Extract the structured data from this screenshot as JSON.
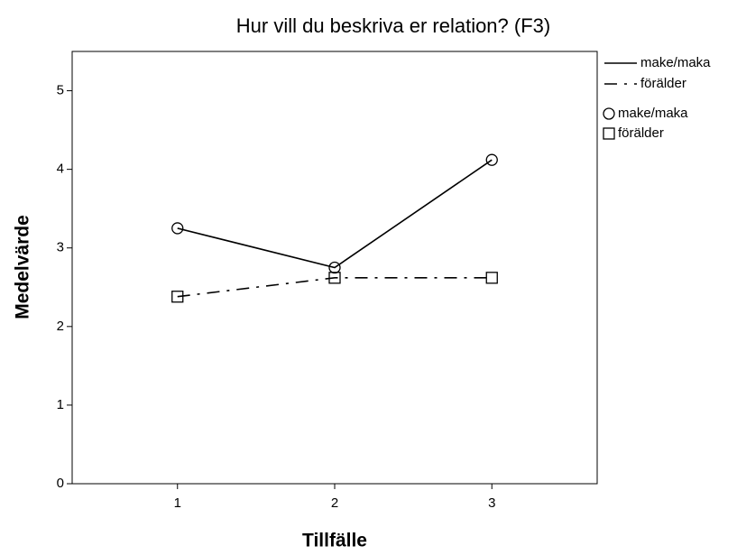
{
  "chart_data": {
    "type": "line",
    "title": "Hur vill du beskriva er relation? (F3)",
    "xlabel": "Tillfälle",
    "ylabel": "Medelvärde",
    "x": [
      1,
      2,
      3
    ],
    "series": [
      {
        "name": "make/maka",
        "color": "#000000",
        "dash": "solid",
        "marker": "circle",
        "values": [
          3.25,
          2.75,
          4.12
        ]
      },
      {
        "name": "förälder",
        "color": "#000000",
        "dash": "dashdot",
        "marker": "square",
        "values": [
          2.38,
          2.62,
          2.62
        ]
      }
    ],
    "xlim": [
      0.33,
      3.67
    ],
    "xticks": [
      1,
      2,
      3
    ],
    "ylim": [
      0,
      5.5
    ],
    "yticks": [
      0,
      1,
      2,
      3,
      4,
      5
    ],
    "grid": false
  }
}
